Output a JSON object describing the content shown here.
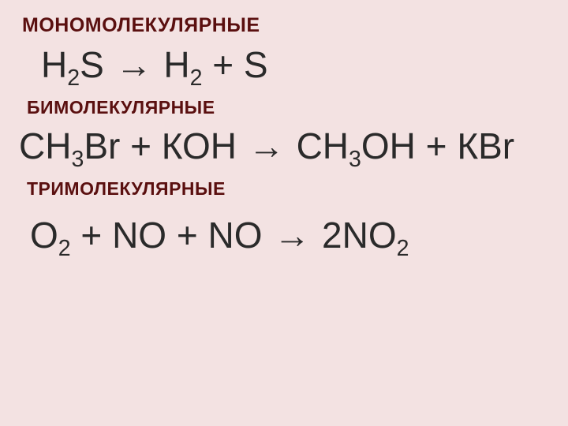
{
  "background_color": "#f3e2e2",
  "heading_color": "#5a0f0f",
  "text_color": "#2a2a2a",
  "heading_font_weight": 700,
  "heading_font_family": "Arial",
  "equation_font_family": "Arial",
  "sections": {
    "mono": {
      "title": "МОНОМОЛЕКУЛЯРНЫЕ",
      "title_fontsize": 25,
      "equation_fontsize": 46,
      "equation": {
        "tokens": [
          "H",
          {
            "sub": "2"
          },
          "S ",
          {
            "arrow": "→"
          },
          " H",
          {
            "sub": "2"
          },
          " + S"
        ]
      }
    },
    "bi": {
      "title": "БИМОЛЕКУЛЯРНЫЕ",
      "title_fontsize": 23,
      "equation_fontsize": 46,
      "equation": {
        "tokens": [
          "СН",
          {
            "sub": "3"
          },
          "Вr + КОН ",
          {
            "arrow": "→"
          },
          " СН",
          {
            "sub": "3"
          },
          "ОН + КВr"
        ]
      }
    },
    "tri": {
      "title": "ТРИМОЛЕКУЛЯРНЫЕ",
      "title_fontsize": 23,
      "equation_fontsize": 46,
      "equation": {
        "tokens": [
          "О",
          {
            "sub": "2"
          },
          " + NО + NО ",
          {
            "arrow": "→"
          },
          " 2NО",
          {
            "sub": "2"
          }
        ]
      }
    }
  }
}
